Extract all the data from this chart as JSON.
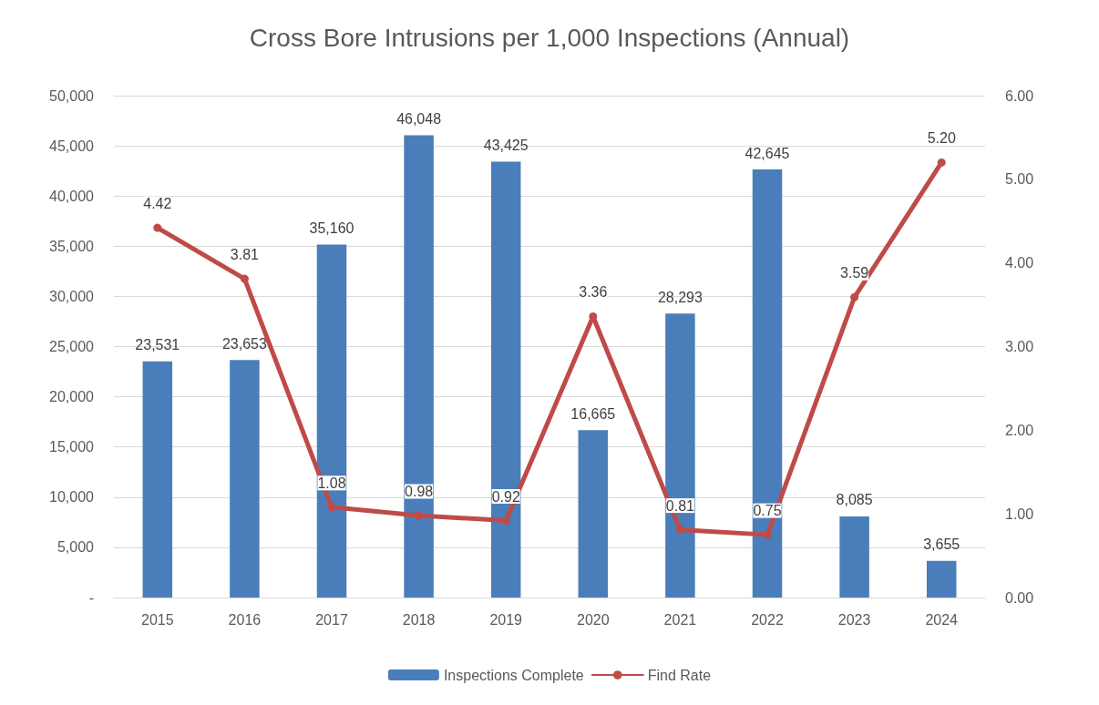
{
  "chart_data": {
    "type": "bar",
    "title": "Cross Bore Intrusions per 1,000 Inspections (Annual)",
    "categories": [
      "2015",
      "2016",
      "2017",
      "2018",
      "2019",
      "2020",
      "2021",
      "2022",
      "2023",
      "2024"
    ],
    "series": [
      {
        "name": "Inspections Complete",
        "color": "#4a7ebb",
        "values": [
          23531,
          23653,
          35160,
          46048,
          43425,
          16665,
          28293,
          42645,
          8085,
          3655
        ],
        "value_labels": [
          "23,531",
          "23,653",
          "35,160",
          "46,048",
          "43,425",
          "16,665",
          "28,293",
          "42,645",
          "8,085",
          "3,655"
        ]
      },
      {
        "name": "Find Rate",
        "type": "line",
        "axis": "y2",
        "color": "#be4b48",
        "values": [
          4.42,
          3.81,
          1.08,
          0.98,
          0.92,
          3.36,
          0.81,
          0.75,
          3.59,
          5.2
        ],
        "value_labels": [
          "4.42",
          "3.81",
          "1.08",
          "0.98",
          "0.92",
          "3.36",
          "0.81",
          "0.75",
          "3.59",
          "5.20"
        ]
      }
    ],
    "ylim": [
      0,
      50000
    ],
    "yticks": [
      {
        "value": 0,
        "label": "-"
      },
      {
        "value": 5000,
        "label": "5,000"
      },
      {
        "value": 10000,
        "label": "10,000"
      },
      {
        "value": 15000,
        "label": "15,000"
      },
      {
        "value": 20000,
        "label": "20,000"
      },
      {
        "value": 25000,
        "label": "25,000"
      },
      {
        "value": 30000,
        "label": "30,000"
      },
      {
        "value": 35000,
        "label": "35,000"
      },
      {
        "value": 40000,
        "label": "40,000"
      },
      {
        "value": 45000,
        "label": "45,000"
      },
      {
        "value": 50000,
        "label": "50,000"
      }
    ],
    "y2lim": [
      0,
      6
    ],
    "y2ticks": [
      {
        "value": 0,
        "label": "0.00"
      },
      {
        "value": 1,
        "label": "1.00"
      },
      {
        "value": 2,
        "label": "2.00"
      },
      {
        "value": 3,
        "label": "3.00"
      },
      {
        "value": 4,
        "label": "4.00"
      },
      {
        "value": 5,
        "label": "5.00"
      },
      {
        "value": 6,
        "label": "6.00"
      }
    ],
    "grid": "y",
    "legend": "bottom",
    "marker": "circle",
    "line_style": "solid"
  }
}
